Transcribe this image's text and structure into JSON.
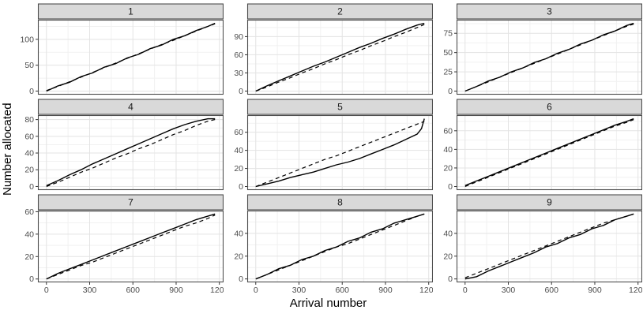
{
  "figure": {
    "xlabel": "Arrival number",
    "ylabel": "Number allocated",
    "colors": {
      "background": "#ffffff",
      "strip_bg": "#d9d9d9",
      "strip_text": "#1a1a1a",
      "panel_border": "#4d4d4d",
      "grid_major": "#e3e3e3",
      "grid_minor": "#f1f1f1",
      "line": "#000000",
      "tick_text": "#4d4d4d",
      "tick_mark": "#333333"
    }
  },
  "chart_data": [
    {
      "type": "line",
      "title": "1",
      "xlim": [
        -59,
        1229
      ],
      "ylim": [
        -6.9,
        137.9
      ],
      "xticks": [
        0,
        300,
        600,
        900,
        1200
      ],
      "xminor": [
        150,
        450,
        750,
        1050
      ],
      "yticks": [
        0,
        50,
        100
      ],
      "yminor": [
        25,
        75,
        125
      ],
      "series": [
        {
          "name": "allocated",
          "style": "solid",
          "x": [
            0,
            80,
            160,
            240,
            320,
            400,
            480,
            560,
            640,
            720,
            800,
            880,
            960,
            1040,
            1120,
            1170
          ],
          "y": [
            0,
            10,
            17,
            28,
            35,
            46,
            53,
            64,
            71,
            82,
            89,
            100,
            107,
            117,
            125,
            131
          ]
        },
        {
          "name": "expected",
          "style": "dashed",
          "x": [
            0,
            80,
            160,
            240,
            320,
            400,
            480,
            560,
            640,
            720,
            800,
            880,
            960,
            1040,
            1120,
            1170
          ],
          "y": [
            1,
            9,
            18,
            27,
            36,
            45,
            54,
            63,
            72,
            81,
            90,
            98,
            107,
            116,
            125,
            130
          ]
        }
      ]
    },
    {
      "type": "line",
      "title": "2",
      "xlim": [
        -59,
        1229
      ],
      "ylim": [
        -5.9,
        117.9
      ],
      "xticks": [
        0,
        300,
        600,
        900,
        1200
      ],
      "xminor": [
        150,
        450,
        750,
        1050
      ],
      "yticks": [
        0,
        30,
        60,
        90
      ],
      "yminor": [
        15,
        45,
        75,
        105
      ],
      "series": [
        {
          "name": "allocated",
          "style": "solid",
          "x": [
            0,
            80,
            160,
            240,
            320,
            400,
            480,
            560,
            640,
            720,
            800,
            880,
            960,
            1040,
            1120,
            1170
          ],
          "y": [
            0,
            9,
            17,
            25,
            33,
            41,
            48,
            56,
            64,
            72,
            79,
            87,
            94,
            102,
            109,
            112
          ]
        },
        {
          "name": "expected",
          "style": "dashed",
          "x": [
            0,
            80,
            160,
            240,
            320,
            400,
            480,
            560,
            640,
            720,
            800,
            880,
            960,
            1040,
            1120,
            1170
          ],
          "y": [
            0,
            7,
            15,
            22,
            30,
            37,
            45,
            52,
            60,
            67,
            75,
            82,
            90,
            97,
            105,
            110
          ]
        }
      ]
    },
    {
      "type": "line",
      "title": "3",
      "xlim": [
        -59,
        1229
      ],
      "ylim": [
        -4.6,
        92.6
      ],
      "xticks": [
        0,
        300,
        600,
        900,
        1200
      ],
      "xminor": [
        150,
        450,
        750,
        1050
      ],
      "yticks": [
        0,
        25,
        50,
        75
      ],
      "yminor": [
        12.5,
        37.5,
        62.5,
        87.5
      ],
      "series": [
        {
          "name": "allocated",
          "style": "solid",
          "x": [
            0,
            80,
            160,
            240,
            320,
            400,
            480,
            560,
            640,
            720,
            800,
            880,
            960,
            1040,
            1120,
            1170
          ],
          "y": [
            0,
            6,
            13,
            18,
            25,
            30,
            37,
            42,
            49,
            54,
            61,
            66,
            73,
            78,
            85,
            88
          ]
        },
        {
          "name": "expected",
          "style": "dashed",
          "x": [
            0,
            80,
            160,
            240,
            320,
            400,
            480,
            560,
            640,
            720,
            800,
            880,
            960,
            1040,
            1120,
            1170
          ],
          "y": [
            0,
            6,
            12,
            18,
            24,
            30,
            36,
            42,
            48,
            54,
            60,
            66,
            72,
            78,
            84,
            87
          ]
        }
      ]
    },
    {
      "type": "line",
      "title": "4",
      "xlim": [
        -59,
        1229
      ],
      "ylim": [
        -4.3,
        85.3
      ],
      "xticks": [
        0,
        300,
        600,
        900,
        1200
      ],
      "xminor": [
        150,
        450,
        750,
        1050
      ],
      "yticks": [
        0,
        20,
        40,
        60,
        80
      ],
      "yminor": [
        10,
        30,
        50,
        70
      ],
      "series": [
        {
          "name": "allocated",
          "style": "solid",
          "x": [
            0,
            80,
            160,
            240,
            320,
            400,
            480,
            560,
            640,
            720,
            800,
            880,
            960,
            1040,
            1120,
            1170
          ],
          "y": [
            1,
            7,
            14,
            20,
            27,
            33,
            39,
            45,
            51,
            57,
            63,
            69,
            74,
            78,
            81,
            81
          ]
        },
        {
          "name": "expected",
          "style": "dashed",
          "x": [
            0,
            80,
            160,
            240,
            320,
            400,
            480,
            560,
            640,
            720,
            800,
            880,
            960,
            1040,
            1120,
            1170
          ],
          "y": [
            0,
            5,
            11,
            17,
            22,
            28,
            34,
            39,
            45,
            50,
            56,
            62,
            67,
            73,
            78,
            80
          ]
        }
      ]
    },
    {
      "type": "line",
      "title": "5",
      "xlim": [
        -59,
        1229
      ],
      "ylim": [
        -3.9,
        78.9
      ],
      "xticks": [
        0,
        300,
        600,
        900,
        1200
      ],
      "xminor": [
        150,
        450,
        750,
        1050
      ],
      "yticks": [
        0,
        20,
        40,
        60
      ],
      "yminor": [
        10,
        30,
        50,
        70
      ],
      "series": [
        {
          "name": "allocated",
          "style": "solid",
          "x": [
            0,
            80,
            160,
            240,
            320,
            400,
            480,
            560,
            640,
            720,
            800,
            880,
            960,
            1040,
            1120,
            1150,
            1170
          ],
          "y": [
            0,
            3,
            6,
            10,
            13,
            16,
            20,
            24,
            27,
            31,
            36,
            41,
            46,
            52,
            58,
            64,
            75
          ]
        },
        {
          "name": "expected",
          "style": "dashed",
          "x": [
            0,
            80,
            160,
            240,
            320,
            400,
            480,
            560,
            640,
            720,
            800,
            880,
            960,
            1040,
            1120,
            1170
          ],
          "y": [
            0,
            5,
            10,
            15,
            20,
            25,
            30,
            34,
            39,
            44,
            49,
            54,
            59,
            64,
            69,
            72
          ]
        }
      ]
    },
    {
      "type": "line",
      "title": "6",
      "xlim": [
        -59,
        1229
      ],
      "ylim": [
        -3.8,
        76.8
      ],
      "xticks": [
        0,
        300,
        600,
        900,
        1200
      ],
      "xminor": [
        150,
        450,
        750,
        1050
      ],
      "yticks": [
        0,
        20,
        40,
        60
      ],
      "yminor": [
        10,
        30,
        50,
        70
      ],
      "series": [
        {
          "name": "allocated",
          "style": "solid",
          "x": [
            0,
            80,
            160,
            240,
            320,
            400,
            480,
            560,
            640,
            720,
            800,
            880,
            960,
            1040,
            1120,
            1170
          ],
          "y": [
            1,
            6,
            11,
            16,
            21,
            26,
            31,
            36,
            41,
            46,
            51,
            56,
            61,
            66,
            70,
            73
          ]
        },
        {
          "name": "expected",
          "style": "dashed",
          "x": [
            0,
            80,
            160,
            240,
            320,
            400,
            480,
            560,
            640,
            720,
            800,
            880,
            960,
            1040,
            1120,
            1170
          ],
          "y": [
            0,
            5,
            10,
            15,
            20,
            25,
            30,
            35,
            40,
            45,
            50,
            55,
            60,
            65,
            69,
            72
          ]
        }
      ]
    },
    {
      "type": "line",
      "title": "7",
      "xlim": [
        -59,
        1229
      ],
      "ylim": [
        -3.0,
        61.0
      ],
      "xticks": [
        0,
        300,
        600,
        900,
        1200
      ],
      "xminor": [
        150,
        450,
        750,
        1050
      ],
      "yticks": [
        0,
        20,
        40,
        60
      ],
      "yminor": [
        10,
        30,
        50
      ],
      "series": [
        {
          "name": "allocated",
          "style": "solid",
          "x": [
            0,
            80,
            160,
            240,
            320,
            400,
            480,
            560,
            640,
            720,
            800,
            880,
            960,
            1040,
            1120,
            1170
          ],
          "y": [
            0,
            5,
            9,
            13,
            17,
            21,
            25,
            29,
            33,
            37,
            41,
            45,
            49,
            53,
            56,
            58
          ]
        },
        {
          "name": "expected",
          "style": "dashed",
          "x": [
            0,
            80,
            160,
            240,
            320,
            400,
            480,
            560,
            640,
            720,
            800,
            880,
            960,
            1040,
            1120,
            1170
          ],
          "y": [
            0,
            4,
            8,
            12,
            15,
            19,
            23,
            27,
            31,
            35,
            39,
            43,
            47,
            50,
            54,
            57
          ]
        }
      ]
    },
    {
      "type": "line",
      "title": "8",
      "xlim": [
        -59,
        1229
      ],
      "ylim": [
        -3.0,
        60.0
      ],
      "xticks": [
        0,
        300,
        600,
        900,
        1200
      ],
      "xminor": [
        150,
        450,
        750,
        1050
      ],
      "yticks": [
        0,
        20,
        40
      ],
      "yminor": [
        10,
        30,
        50
      ],
      "series": [
        {
          "name": "allocated",
          "style": "solid",
          "x": [
            0,
            80,
            160,
            240,
            320,
            400,
            480,
            560,
            640,
            720,
            800,
            880,
            960,
            1040,
            1120,
            1170
          ],
          "y": [
            0,
            4,
            9,
            12,
            17,
            20,
            25,
            28,
            33,
            36,
            41,
            44,
            49,
            52,
            55,
            57
          ]
        },
        {
          "name": "expected",
          "style": "dashed",
          "x": [
            0,
            80,
            160,
            240,
            320,
            400,
            480,
            560,
            640,
            720,
            800,
            880,
            960,
            1040,
            1120,
            1170
          ],
          "y": [
            0,
            4,
            8,
            12,
            16,
            20,
            24,
            28,
            31,
            35,
            39,
            43,
            47,
            51,
            55,
            57
          ]
        }
      ]
    },
    {
      "type": "line",
      "title": "9",
      "xlim": [
        -59,
        1229
      ],
      "ylim": [
        -3.0,
        60.0
      ],
      "xticks": [
        0,
        300,
        600,
        900,
        1200
      ],
      "xminor": [
        150,
        450,
        750,
        1050
      ],
      "yticks": [
        0,
        20,
        40
      ],
      "yminor": [
        10,
        30,
        50
      ],
      "series": [
        {
          "name": "allocated",
          "style": "solid",
          "x": [
            0,
            80,
            160,
            240,
            320,
            400,
            480,
            560,
            640,
            720,
            800,
            880,
            960,
            1040,
            1120,
            1170
          ],
          "y": [
            0,
            2,
            7,
            11,
            15,
            19,
            23,
            28,
            31,
            36,
            39,
            44,
            47,
            52,
            55,
            57
          ]
        },
        {
          "name": "expected",
          "style": "dashed",
          "x": [
            0,
            80,
            160,
            240,
            320,
            400,
            480,
            560,
            640,
            720,
            800,
            880,
            960,
            1040,
            1120,
            1170
          ],
          "y": [
            1,
            5,
            9,
            13,
            17,
            21,
            25,
            29,
            33,
            37,
            41,
            45,
            49,
            52,
            55,
            57
          ]
        }
      ]
    }
  ]
}
